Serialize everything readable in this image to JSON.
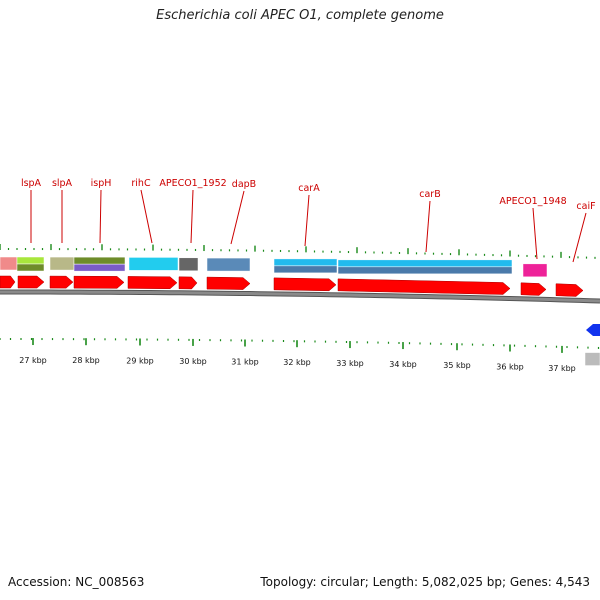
{
  "title": "Escherichia coli APEC O1, complete genome",
  "footer": {
    "accession": "Accession: NC_008563",
    "summary": "Topology: circular; Length: 5,082,025 bp; Genes: 4,543"
  },
  "colors": {
    "cds": "#ff0000",
    "backbone": "#8a8a8a",
    "tick": "#1a8a1a",
    "label": "#cc0000"
  },
  "gene_labels": [
    "lspA",
    "slpA",
    "ispH",
    "rihC",
    "APECO1_1952",
    "dapB",
    "carA",
    "carB",
    "APECO1_1948",
    "caiF"
  ],
  "scale_labels": [
    "27 kbp",
    "28 kbp",
    "29 kbp",
    "30 kbp",
    "31 kbp",
    "32 kbp",
    "33 kbp",
    "34 kbp",
    "35 kbp",
    "36 kbp",
    "37 kbp"
  ]
}
